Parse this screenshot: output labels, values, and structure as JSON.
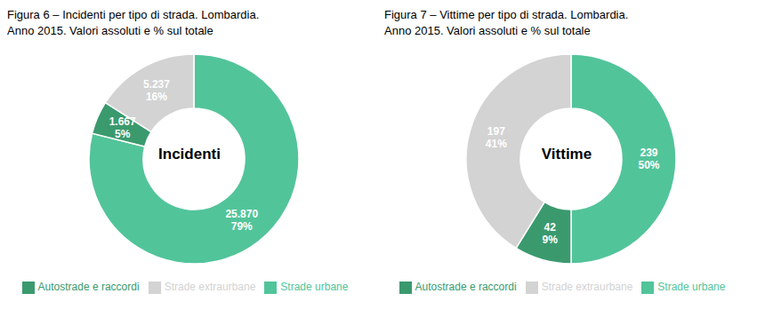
{
  "chart_data": [
    {
      "type": "pie",
      "title": "Figura 6 – Incidenti per tipo di strada. Lombardia.\nAnno 2015. Valori assoluti e % sul totale",
      "annotations": [
        "Incidenti"
      ],
      "categories": [
        "Strade urbane",
        "Autostrade e raccordi",
        "Strade extraurbane"
      ],
      "values": [
        25870,
        1667,
        5237
      ],
      "value_labels": [
        "25.870\n79%",
        "1.667\n5%",
        "5.237\n16%"
      ],
      "data_labels": true,
      "colors": [
        "#52C49A",
        "#3A9A6E",
        "#D3D3D3"
      ],
      "legend": "bottom"
    },
    {
      "type": "pie",
      "title": "Figura 7 – Vittime per tipo di strada. Lombardia.\nAnno 2015. Valori assoluti e % sul totale",
      "annotations": [
        "Vittime"
      ],
      "categories": [
        "Strade urbane",
        "Autostrade e raccordi",
        "Strade extraurbane"
      ],
      "values": [
        239,
        42,
        197
      ],
      "value_labels": [
        "239\n50%",
        "42\n9%",
        "197\n41%"
      ],
      "data_labels": true,
      "colors": [
        "#52C49A",
        "#3A9A6E",
        "#D3D3D3"
      ],
      "legend": "bottom"
    }
  ]
}
